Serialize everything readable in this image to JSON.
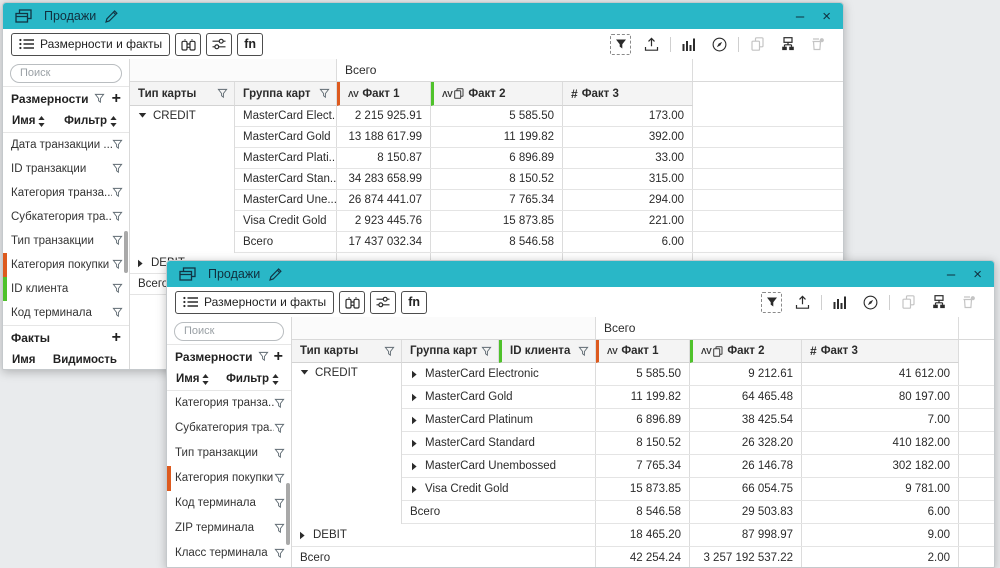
{
  "canvas": {
    "background": "#E9EBED"
  },
  "colors": {
    "titlebar": "#29B7C7",
    "accent_orange": "#DD5A1E",
    "accent_green": "#4FC22B"
  },
  "windows": [
    {
      "title": "Продажи",
      "controls": {
        "minimize": "–",
        "close": "×"
      },
      "toolbar": {
        "dims_facts_button": "Размерности и факты",
        "fn_button": "fn",
        "right_icons": [
          {
            "name": "filter-selection-icon",
            "disabled": false
          },
          {
            "name": "export-icon",
            "disabled": false
          },
          {
            "name": "separator"
          },
          {
            "name": "bar-chart-icon",
            "disabled": false
          },
          {
            "name": "gauge-icon",
            "disabled": false
          },
          {
            "name": "separator"
          },
          {
            "name": "copy-icon",
            "disabled": true
          },
          {
            "name": "hierarchy-icon",
            "disabled": false
          },
          {
            "name": "archive-icon",
            "disabled": true
          }
        ]
      },
      "sidebar": {
        "search_placeholder": "Поиск",
        "dimensions_title": "Размерности",
        "add_label": "+",
        "name_col": "Имя",
        "filter_col": "Фильтр",
        "items": [
          {
            "label": "Дата транзакции ..."
          },
          {
            "label": "ID транзакции"
          },
          {
            "label": "Категория транза..."
          },
          {
            "label": "Субкатегория тра..."
          },
          {
            "label": "Тип транзакции"
          },
          {
            "label": "Категория покупки",
            "marker": "#DD5A1E"
          },
          {
            "label": "ID клиента",
            "marker": "#4FC22B"
          },
          {
            "label": "Код терминала"
          }
        ],
        "facts_title": "Факты",
        "facts_name_col": "Имя",
        "facts_visibility_col": "Видимость"
      },
      "table": {
        "total_label": "Всего",
        "columns": [
          {
            "label": "Тип карты",
            "kind": "dim"
          },
          {
            "label": "Группа карт",
            "kind": "dim"
          },
          {
            "label": "Факт 1",
            "kind": "fact",
            "icon": "avg",
            "marker": "#DD5A1E"
          },
          {
            "label": "Факт 2",
            "kind": "fact",
            "icon": "avg-copy",
            "marker": "#4FC22B"
          },
          {
            "label": "Факт 3",
            "kind": "fact",
            "icon": "hash"
          }
        ],
        "group": {
          "label": "CREDIT",
          "rows": [
            {
              "dim": "MasterCard Elect...",
              "values": [
                "2 215 925.91",
                "5 585.50",
                "173.00"
              ]
            },
            {
              "dim": "MasterCard Gold",
              "values": [
                "13 188 617.99",
                "11 199.82",
                "392.00"
              ]
            },
            {
              "dim": "MasterCard Plati...",
              "values": [
                "8 150.87",
                "6 896.89",
                "33.00"
              ]
            },
            {
              "dim": "MasterCard Stan...",
              "values": [
                "34 283 658.99",
                "8 150.52",
                "315.00"
              ]
            },
            {
              "dim": "MasterCard Une...",
              "values": [
                "26 874 441.07",
                "7 765.34",
                "294.00"
              ]
            },
            {
              "dim": "Visa Credit Gold",
              "values": [
                "2 923 445.76",
                "15 873.85",
                "221.00"
              ]
            }
          ],
          "subtotal": {
            "label": "Всего",
            "values": [
              "17 437 032.34",
              "8 546.58",
              "6.00"
            ]
          }
        },
        "debit": {
          "label": "DEBIT",
          "values": [
            "",
            "",
            ""
          ]
        },
        "grand": {
          "label": "Всего",
          "values": [
            "",
            "",
            ""
          ]
        }
      }
    },
    {
      "title": "Продажи",
      "controls": {
        "minimize": "–",
        "close": "×"
      },
      "toolbar": {
        "dims_facts_button": "Размерности и факты",
        "fn_button": "fn",
        "right_icons": [
          {
            "name": "filter-selection-icon",
            "disabled": false
          },
          {
            "name": "export-icon",
            "disabled": false
          },
          {
            "name": "separator"
          },
          {
            "name": "bar-chart-icon",
            "disabled": false
          },
          {
            "name": "gauge-icon",
            "disabled": false
          },
          {
            "name": "separator"
          },
          {
            "name": "copy-icon",
            "disabled": true
          },
          {
            "name": "hierarchy-icon",
            "disabled": false
          },
          {
            "name": "archive-icon",
            "disabled": true
          }
        ]
      },
      "sidebar": {
        "search_placeholder": "Поиск",
        "dimensions_title": "Размерности",
        "add_label": "+",
        "name_col": "Имя",
        "filter_col": "Фильтр",
        "items": [
          {
            "label": "Категория транза..."
          },
          {
            "label": "Субкатегория тра..."
          },
          {
            "label": "Тип транзакции"
          },
          {
            "label": "Категория покупки",
            "marker": "#DD5A1E"
          },
          {
            "label": "Код терминала"
          },
          {
            "label": "ZIP терминала"
          },
          {
            "label": "Класс терминала"
          }
        ]
      },
      "table": {
        "total_label": "Всего",
        "columns": [
          {
            "label": "Тип карты",
            "kind": "dim"
          },
          {
            "label": "Группа карт",
            "kind": "dim"
          },
          {
            "label": "ID клиента",
            "kind": "dim",
            "marker": "#4FC22B"
          },
          {
            "label": "Факт 1",
            "kind": "fact",
            "icon": "avg",
            "marker": "#DD5A1E"
          },
          {
            "label": "Факт 2",
            "kind": "fact",
            "icon": "avg-copy",
            "marker": "#4FC22B"
          },
          {
            "label": "Факт 3",
            "kind": "fact",
            "icon": "hash"
          }
        ],
        "group": {
          "label": "CREDIT",
          "rows": [
            {
              "dim": "MasterCard Electronic",
              "caret": true,
              "values": [
                "5 585.50",
                "9 212.61",
                "41 612.00"
              ]
            },
            {
              "dim": "MasterCard Gold",
              "caret": true,
              "values": [
                "11 199.82",
                "64 465.48",
                "80 197.00"
              ]
            },
            {
              "dim": "MasterCard Platinum",
              "caret": true,
              "values": [
                "6 896.89",
                "38 425.54",
                "7.00"
              ]
            },
            {
              "dim": "MasterCard Standard",
              "caret": true,
              "values": [
                "8 150.52",
                "26 328.20",
                "410 182.00"
              ]
            },
            {
              "dim": "MasterCard Unembossed",
              "caret": true,
              "values": [
                "7 765.34",
                "26 146.78",
                "302 182.00"
              ]
            },
            {
              "dim": "Visa Credit Gold",
              "caret": true,
              "values": [
                "15 873.85",
                "66 054.75",
                "9 781.00"
              ]
            }
          ],
          "subtotal": {
            "label": "Всего",
            "values": [
              "8 546.58",
              "29 503.83",
              "6.00"
            ]
          }
        },
        "debit": {
          "label": "DEBIT",
          "values": [
            "18 465.20",
            "87 998.97",
            "9.00"
          ]
        },
        "grand": {
          "label": "Всего",
          "values": [
            "42 254.24",
            "3 257 192 537.22",
            "2.00"
          ]
        }
      }
    }
  ]
}
